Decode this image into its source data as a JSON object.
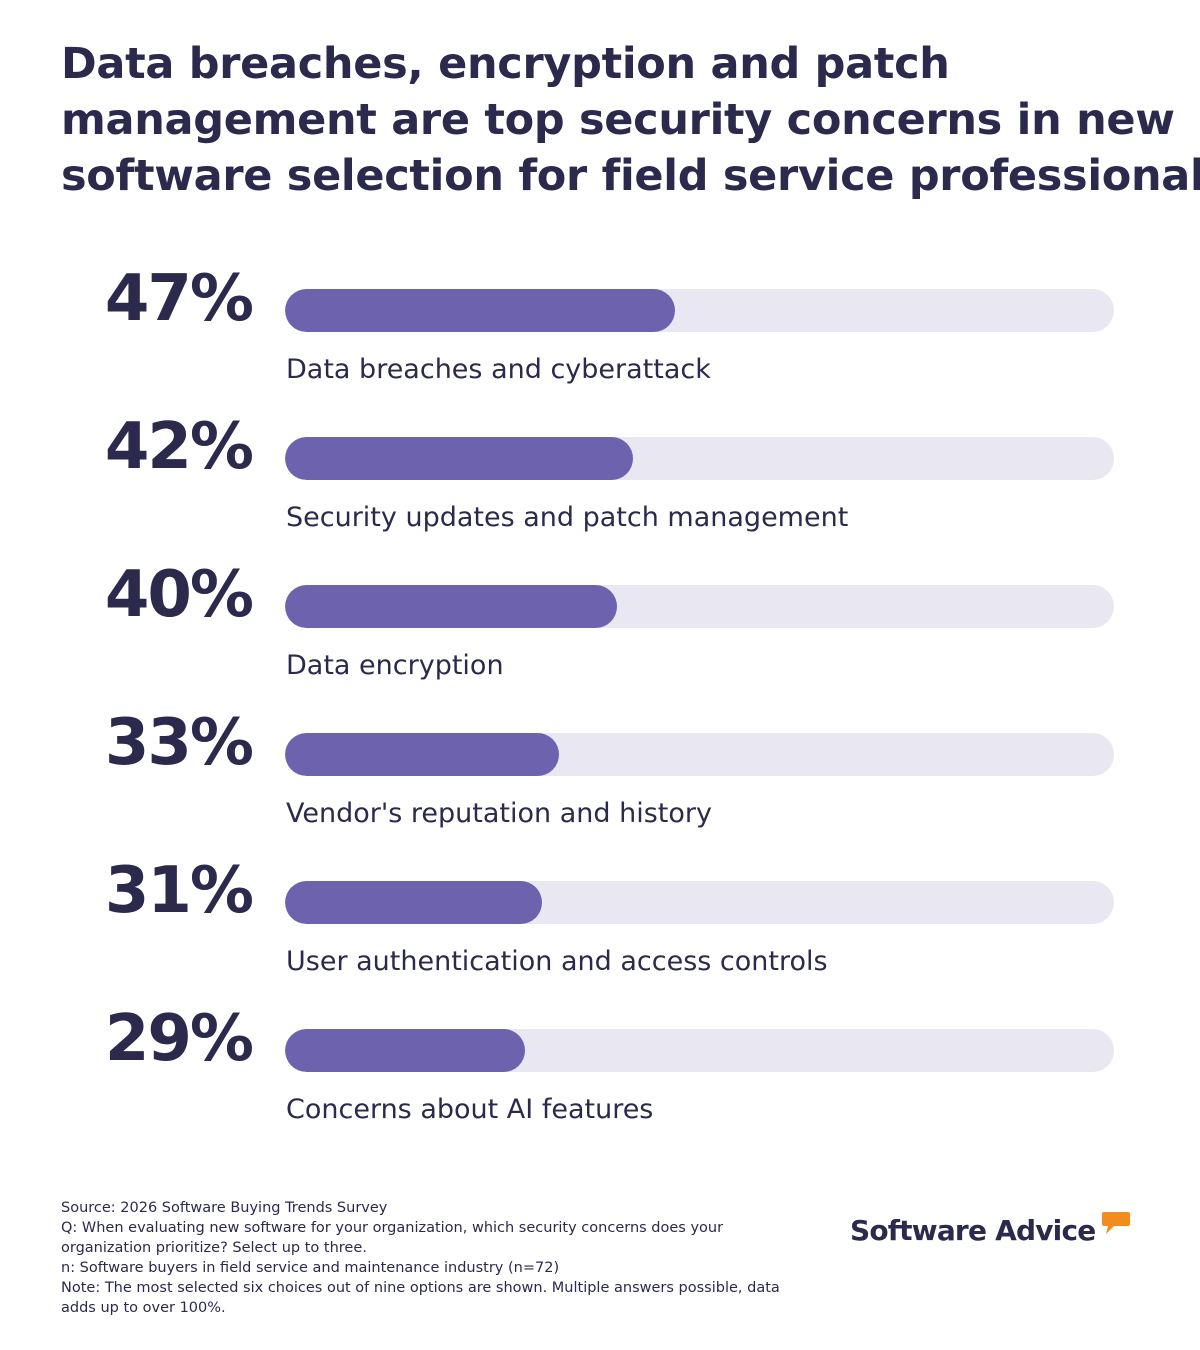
{
  "title_lines": [
    "Data breaches, encryption and patch",
    "management are top security concerns in new",
    "software selection for field service professionals"
  ],
  "colors": {
    "accent": "#6c62ad",
    "track": "#e8e7f2",
    "text": "#2b2a4c",
    "logo_bubble": "#f28c1e"
  },
  "chart_data": {
    "type": "bar",
    "orientation": "horizontal",
    "title": "Data breaches, encryption and patch management are top security concerns in new software selection for field service professionals",
    "xlim": [
      0,
      100
    ],
    "unit": "%",
    "categories": [
      "Data breaches and cyberattack",
      "Security updates and patch management",
      "Data encryption",
      "Vendor's reputation and history",
      "User authentication and access controls",
      "Concerns about AI features"
    ],
    "values": [
      47,
      42,
      40,
      33,
      31,
      29
    ],
    "value_labels": [
      "47%",
      "42%",
      "40%",
      "33%",
      "31%",
      "29%"
    ]
  },
  "footer": {
    "source": "Source: 2026 Software Buying Trends Survey",
    "question_line1": "Q: When evaluating new software for your organization, which security concerns does your",
    "question_line2": "organization prioritize? Select up to three.",
    "n": "n: Software buyers in field service and maintenance industry (n=72)",
    "note_line1": "Note: The most selected six choices out of nine options are shown. Multiple answers possible, data",
    "note_line2": "adds up to over 100%."
  },
  "logo": {
    "text": "Software Advice",
    "icon": "speech-bubble-icon"
  }
}
